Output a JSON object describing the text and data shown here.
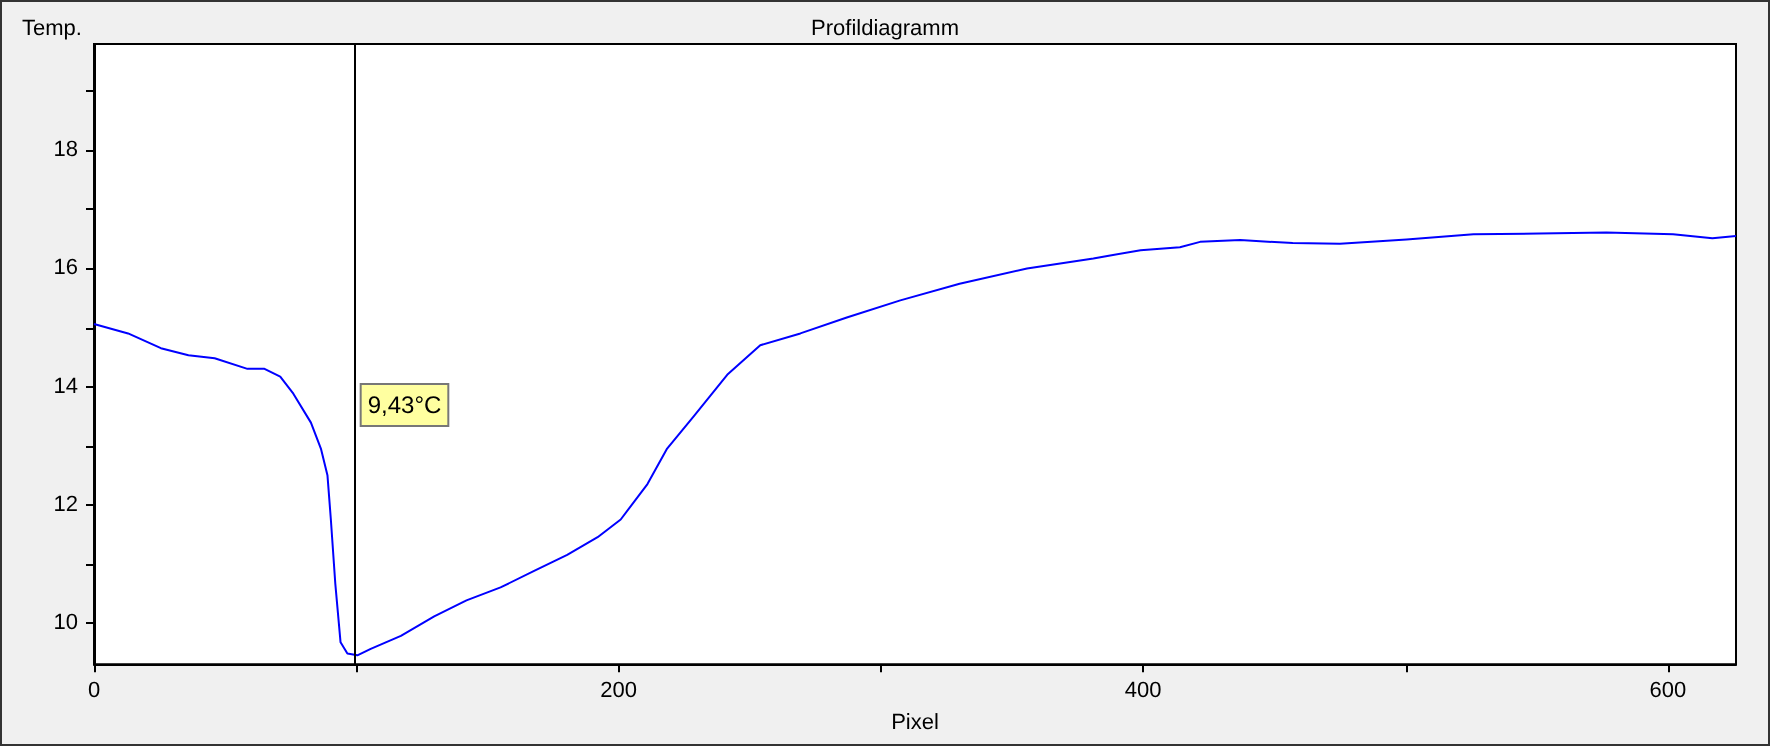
{
  "chart_data": {
    "type": "line",
    "title": "Profildiagramm",
    "xlabel": "Pixel",
    "ylabel": "Temp.",
    "x": [
      0,
      13,
      25.5,
      36,
      46,
      58.5,
      65,
      71,
      76,
      82.7,
      86.5,
      89,
      90.3,
      92,
      94,
      96.6,
      100.4,
      105.5,
      117,
      129.7,
      142,
      155,
      167.8,
      180.4,
      192,
      200.8,
      211,
      218.5,
      228.7,
      241.4,
      254,
      269.3,
      287,
      307.4,
      330,
      355.7,
      381,
      399,
      414,
      421.7,
      437,
      457,
      475,
      500.4,
      525.9,
      551,
      576.6,
      602,
      617,
      626
    ],
    "series": [
      {
        "color": "#0000ff",
        "values": [
          15.06,
          14.9,
          14.65,
          14.53,
          14.48,
          14.3,
          14.3,
          14.17,
          13.88,
          13.39,
          12.95,
          12.5,
          11.75,
          10.66,
          9.67,
          9.48,
          9.45,
          9.56,
          9.78,
          10.11,
          10.38,
          10.6,
          10.88,
          11.15,
          11.45,
          11.75,
          12.35,
          12.95,
          13.5,
          14.2,
          14.7,
          14.9,
          15.17,
          15.46,
          15.74,
          16.0,
          16.17,
          16.31,
          16.36,
          16.45,
          16.48,
          16.43,
          16.42,
          16.49,
          16.58,
          16.59,
          16.61,
          16.58,
          16.51,
          16.55
        ]
      }
    ],
    "xlim": [
      0,
      626
    ],
    "xticks": [
      0,
      {
        "value": 100,
        "label": null
      },
      200,
      {
        "value": 300,
        "label": null
      },
      400,
      {
        "value": 500,
        "label": null
      },
      600
    ],
    "ylim": [
      9.3,
      19.8
    ],
    "yticks": [
      10,
      {
        "value": 11,
        "label": null
      },
      12,
      {
        "value": 13,
        "label": null
      },
      14,
      {
        "value": 15,
        "label": null
      },
      16,
      {
        "value": 17,
        "label": null
      },
      18,
      {
        "value": 19,
        "label": null
      }
    ],
    "ref_lines": [
      {
        "axis": "x",
        "value": 99,
        "label": "9,43°C",
        "color": "#000000"
      }
    ],
    "grid": false,
    "marker": "none",
    "line_style": "solid"
  }
}
